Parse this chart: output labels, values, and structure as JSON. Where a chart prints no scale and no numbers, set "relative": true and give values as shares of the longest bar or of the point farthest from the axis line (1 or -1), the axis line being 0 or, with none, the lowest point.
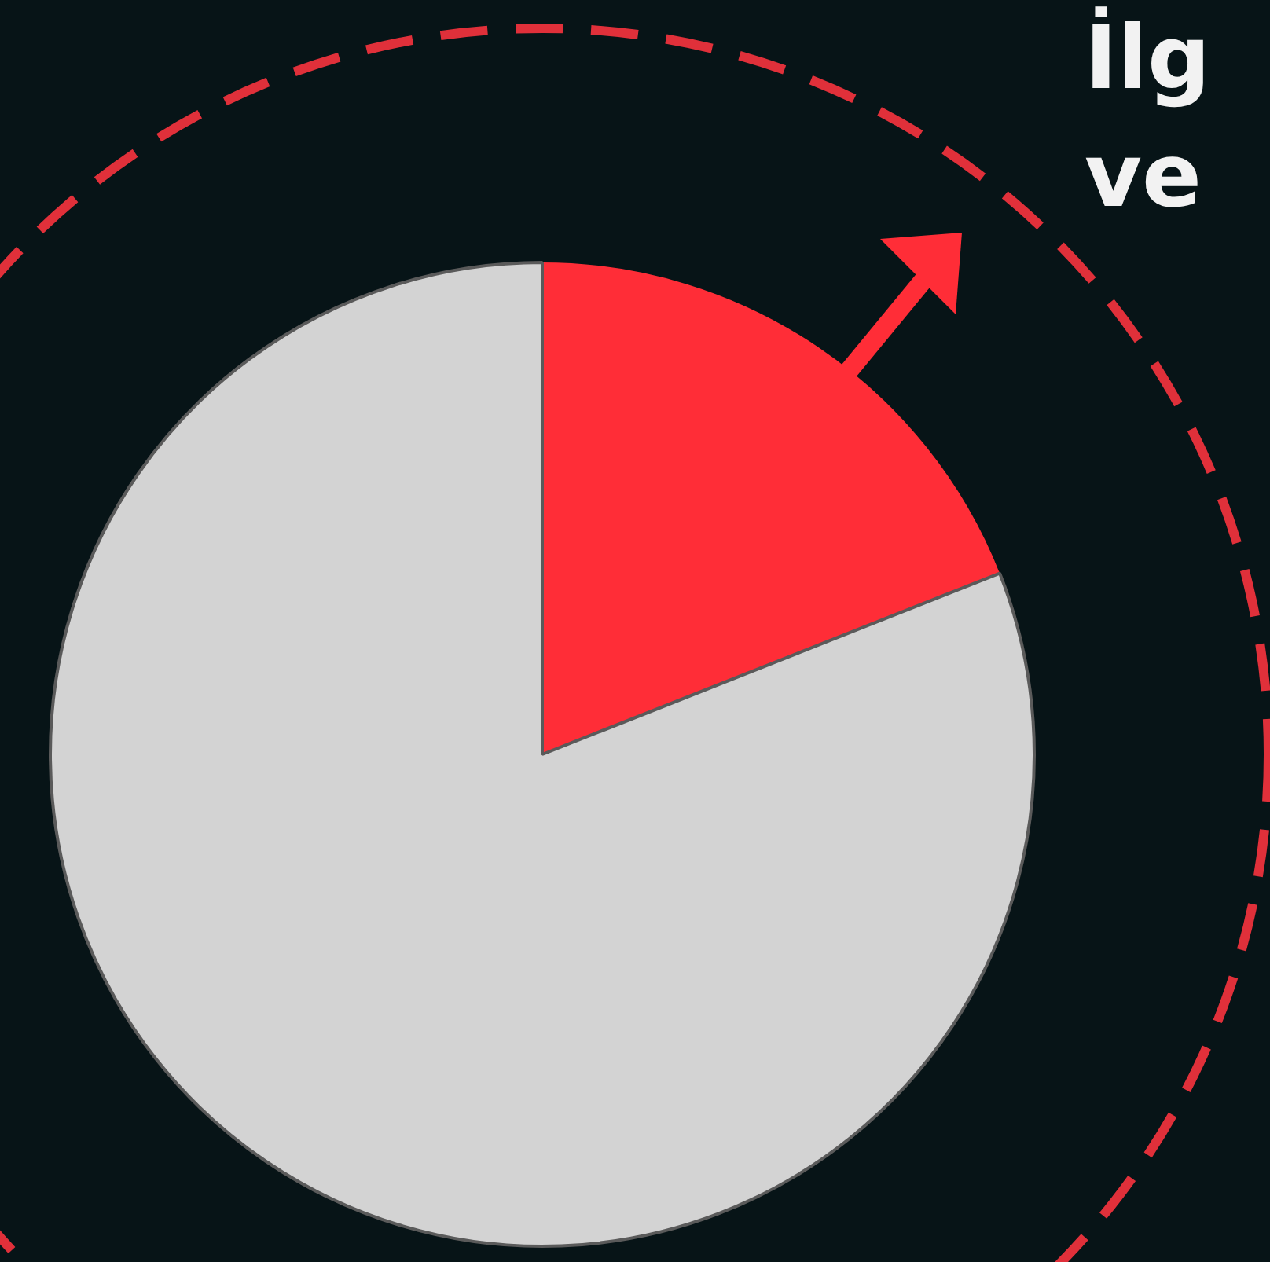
{
  "chart_data": {
    "type": "pie",
    "relative": true,
    "categories": [
      null,
      null
    ],
    "values": [
      19,
      81
    ],
    "colors": [
      "#ff2d37",
      "#d3d3d3"
    ],
    "annotations": [
      "İlg",
      "ve"
    ]
  }
}
